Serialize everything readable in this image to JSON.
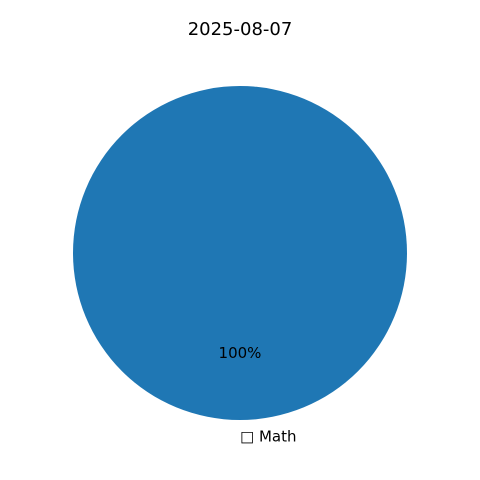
{
  "chart_data": {
    "type": "pie",
    "title": "2025-08-07",
    "categories": [
      "□ Math"
    ],
    "values": [
      100
    ],
    "percent_labels": [
      "100%"
    ],
    "colors": [
      "#1f77b4"
    ],
    "legend": "none"
  }
}
